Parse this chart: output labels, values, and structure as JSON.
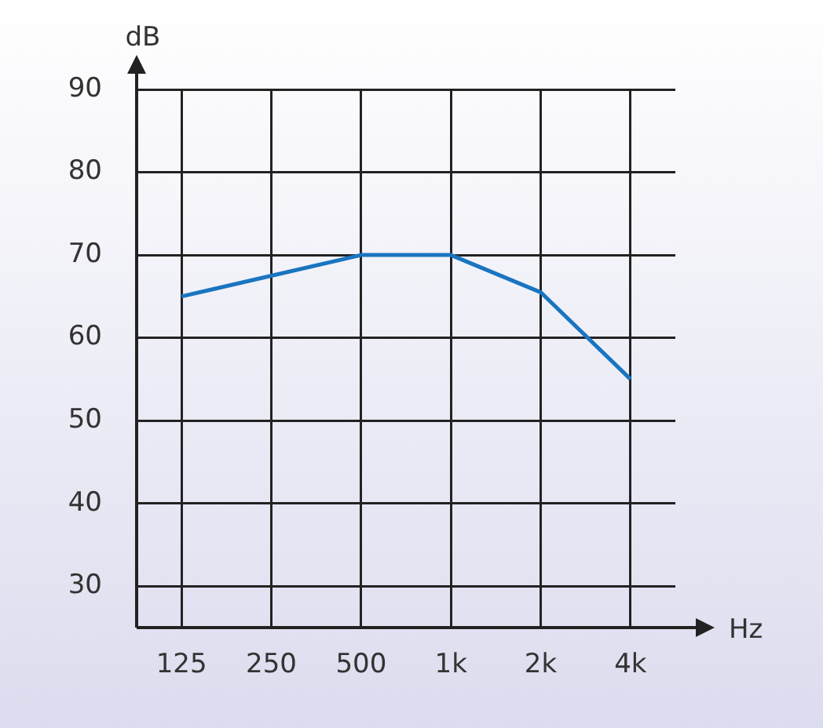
{
  "chart_data": {
    "type": "line",
    "xlabel": "Hz",
    "ylabel": "dB",
    "categories": [
      "125",
      "250",
      "500",
      "1k",
      "2k",
      "4k"
    ],
    "series": [
      {
        "color": "#1a75c0",
        "values": [
          65,
          67.5,
          70,
          70,
          65.5,
          55
        ]
      }
    ],
    "ylim": [
      25,
      90
    ],
    "yticks": [
      30,
      40,
      50,
      60,
      70,
      80,
      90
    ],
    "grid": true,
    "legend": false,
    "marker": "none",
    "line_style": "solid"
  }
}
